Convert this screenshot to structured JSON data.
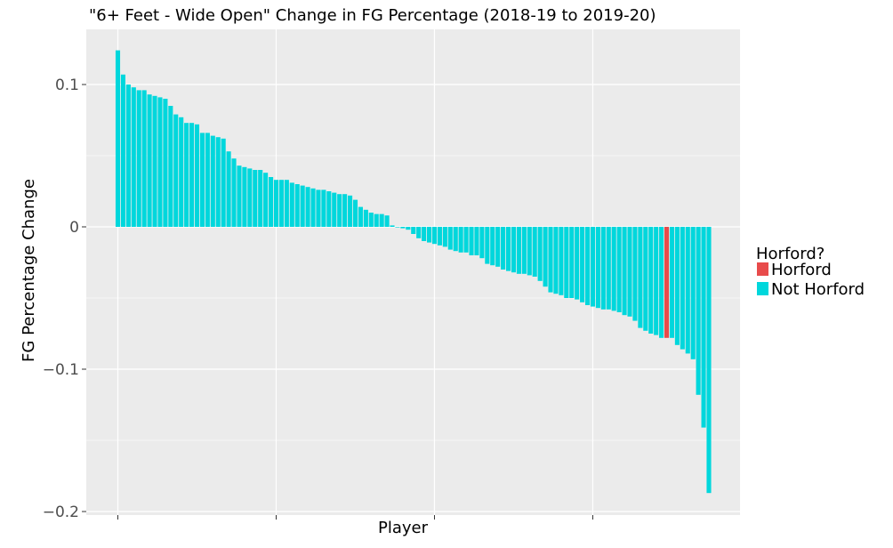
{
  "chart_data": {
    "type": "bar",
    "title": "\"6+ Feet - Wide Open\" Change in FG Percentage (2018-19 to 2019-20)",
    "xlabel": "Player",
    "ylabel": "FG Percentage Change",
    "ylim": [
      -0.2,
      0.14
    ],
    "yticks": [
      0.1,
      0,
      -0.1,
      -0.2
    ],
    "ytick_labels": [
      "0.1",
      "0",
      "−0.1",
      "−0.2"
    ],
    "grid": true,
    "legend_position": "right",
    "legend": {
      "title": "Horford?",
      "items": [
        {
          "label": "Horford",
          "color": "#e84b4b"
        },
        {
          "label": "Not Horford",
          "color": "#00d7dc"
        }
      ]
    },
    "values": [
      0.124,
      0.107,
      0.1,
      0.098,
      0.096,
      0.096,
      0.093,
      0.092,
      0.091,
      0.09,
      0.085,
      0.079,
      0.077,
      0.073,
      0.073,
      0.072,
      0.066,
      0.066,
      0.064,
      0.063,
      0.062,
      0.053,
      0.048,
      0.043,
      0.042,
      0.041,
      0.04,
      0.04,
      0.038,
      0.035,
      0.033,
      0.033,
      0.033,
      0.031,
      0.03,
      0.029,
      0.028,
      0.027,
      0.026,
      0.026,
      0.025,
      0.024,
      0.023,
      0.023,
      0.022,
      0.019,
      0.014,
      0.012,
      0.01,
      0.009,
      0.009,
      0.008,
      0.001,
      0,
      -0.001,
      -0.002,
      -0.005,
      -0.008,
      -0.01,
      -0.011,
      -0.012,
      -0.013,
      -0.014,
      -0.016,
      -0.017,
      -0.018,
      -0.018,
      -0.02,
      -0.02,
      -0.022,
      -0.026,
      -0.027,
      -0.028,
      -0.03,
      -0.031,
      -0.032,
      -0.033,
      -0.033,
      -0.034,
      -0.035,
      -0.038,
      -0.042,
      -0.046,
      -0.047,
      -0.048,
      -0.05,
      -0.05,
      -0.051,
      -0.053,
      -0.055,
      -0.056,
      -0.057,
      -0.058,
      -0.058,
      -0.059,
      -0.06,
      -0.062,
      -0.063,
      -0.066,
      -0.071,
      -0.073,
      -0.075,
      -0.076,
      -0.078,
      -0.078,
      -0.078,
      -0.083,
      -0.086,
      -0.089,
      -0.093,
      -0.118,
      -0.141,
      -0.187
    ],
    "highlight_index": 104,
    "colors": {
      "bar_default": "#00d7dc",
      "bar_highlight": "#e84b4b",
      "panel_background": "#ebebeb",
      "grid_major": "#ffffff",
      "grid_minor": "#f5f5f5"
    }
  }
}
